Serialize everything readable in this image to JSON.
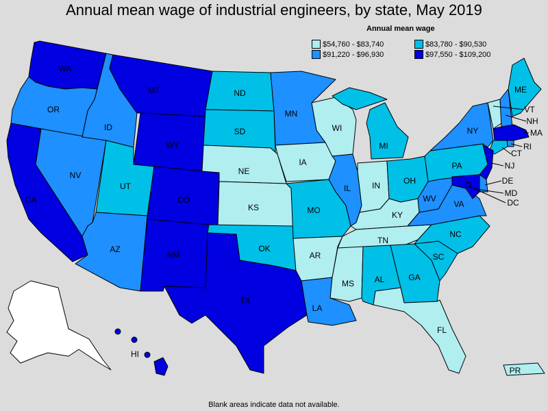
{
  "title": "Annual mean wage of industrial engineers, by state, May 2019",
  "legend": {
    "title": "Annual mean wage",
    "items": [
      {
        "range": "$54,760 - $83,740",
        "color": "#b0eef0"
      },
      {
        "range": "$83,780 - $90,530",
        "color": "#00c0e8"
      },
      {
        "range": "$91,220 - $96,930",
        "color": "#1e90ff"
      },
      {
        "range": "$97,550 - $109,200",
        "color": "#0000e0"
      }
    ]
  },
  "footnote": "Blank areas indicate data not available.",
  "colors": {
    "low": "#b0eef0",
    "mid_low": "#00c0e8",
    "mid_high": "#1e90ff",
    "high": "#0000e0",
    "no_data": "#ffffff"
  },
  "states": {
    "WA": {
      "label": "WA",
      "tier": "high"
    },
    "OR": {
      "label": "OR",
      "tier": "mid_high"
    },
    "CA": {
      "label": "CA",
      "tier": "high"
    },
    "NV": {
      "label": "NV",
      "tier": "mid_high"
    },
    "ID": {
      "label": "ID",
      "tier": "mid_high"
    },
    "MT": {
      "label": "MT",
      "tier": "high"
    },
    "WY": {
      "label": "WY",
      "tier": "high"
    },
    "UT": {
      "label": "UT",
      "tier": "mid_low"
    },
    "AZ": {
      "label": "AZ",
      "tier": "mid_high"
    },
    "CO": {
      "label": "CO",
      "tier": "high"
    },
    "NM": {
      "label": "NM",
      "tier": "high"
    },
    "ND": {
      "label": "ND",
      "tier": "mid_low"
    },
    "SD": {
      "label": "SD",
      "tier": "mid_low"
    },
    "NE": {
      "label": "NE",
      "tier": "low"
    },
    "KS": {
      "label": "KS",
      "tier": "low"
    },
    "OK": {
      "label": "OK",
      "tier": "mid_low"
    },
    "TX": {
      "label": "TX",
      "tier": "high"
    },
    "MN": {
      "label": "MN",
      "tier": "mid_high"
    },
    "IA": {
      "label": "IA",
      "tier": "low"
    },
    "MO": {
      "label": "MO",
      "tier": "mid_low"
    },
    "AR": {
      "label": "AR",
      "tier": "low"
    },
    "LA": {
      "label": "LA",
      "tier": "mid_high"
    },
    "WI": {
      "label": "WI",
      "tier": "low"
    },
    "IL": {
      "label": "IL",
      "tier": "mid_high"
    },
    "MI": {
      "label": "MI",
      "tier": "mid_low"
    },
    "IN": {
      "label": "IN",
      "tier": "low"
    },
    "OH": {
      "label": "OH",
      "tier": "mid_low"
    },
    "KY": {
      "label": "KY",
      "tier": "low"
    },
    "TN": {
      "label": "TN",
      "tier": "low"
    },
    "MS": {
      "label": "MS",
      "tier": "low"
    },
    "AL": {
      "label": "AL",
      "tier": "mid_low"
    },
    "GA": {
      "label": "GA",
      "tier": "mid_low"
    },
    "FL": {
      "label": "FL",
      "tier": "low"
    },
    "SC": {
      "label": "SC",
      "tier": "mid_low"
    },
    "NC": {
      "label": "NC",
      "tier": "mid_low"
    },
    "VA": {
      "label": "VA",
      "tier": "mid_high"
    },
    "WV": {
      "label": "WV",
      "tier": "mid_high"
    },
    "PA": {
      "label": "PA",
      "tier": "mid_low"
    },
    "NY": {
      "label": "NY",
      "tier": "mid_high"
    },
    "VT": {
      "label": "VT",
      "tier": "low"
    },
    "NH": {
      "label": "NH",
      "tier": "mid_high"
    },
    "ME": {
      "label": "ME",
      "tier": "mid_low"
    },
    "MA": {
      "label": "MA",
      "tier": "high"
    },
    "RI": {
      "label": "RI",
      "tier": "mid_high"
    },
    "CT": {
      "label": "CT",
      "tier": "mid_low"
    },
    "NJ": {
      "label": "NJ",
      "tier": "high"
    },
    "DE": {
      "label": "DE",
      "tier": "mid_high"
    },
    "MD": {
      "label": "MD",
      "tier": "high"
    },
    "DC": {
      "label": "DC",
      "tier": "high"
    },
    "AK": {
      "label": "",
      "tier": "no_data"
    },
    "HI": {
      "label": "HI",
      "tier": "high"
    },
    "PR": {
      "label": "PR",
      "tier": "low"
    }
  }
}
